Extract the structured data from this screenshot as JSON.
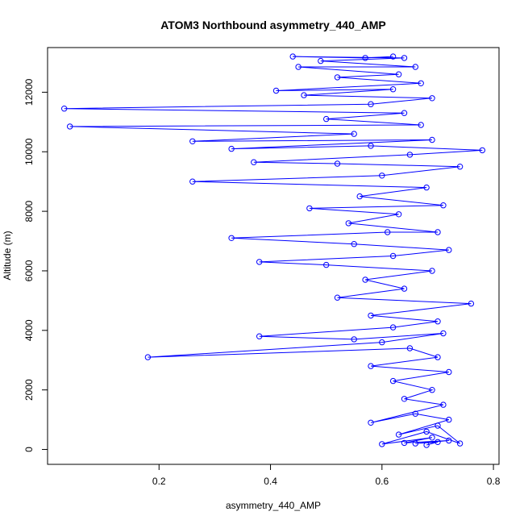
{
  "chart_data": {
    "type": "line",
    "title": "ATOM3 Northbound asymmetry_440_AMP",
    "xlabel": "asymmetry_440_AMP",
    "ylabel": "Altitude (m)",
    "xlim": [
      0.0,
      0.81
    ],
    "ylim": [
      -500,
      13500
    ],
    "x_ticks": [
      0.2,
      0.4,
      0.6,
      0.8
    ],
    "x_tick_labels": [
      "0.2",
      "0.4",
      "0.6",
      "0.8"
    ],
    "y_ticks": [
      0,
      2000,
      4000,
      6000,
      8000,
      10000,
      12000
    ],
    "y_tick_labels": [
      "0",
      "2000",
      "4000",
      "6000",
      "8000",
      "10000",
      "12000"
    ],
    "grid": false,
    "marker": "open-circle",
    "series": [
      {
        "color": "#0000ff",
        "points": [
          [
            0.68,
            150
          ],
          [
            0.7,
            250
          ],
          [
            0.66,
            200
          ],
          [
            0.72,
            300
          ],
          [
            0.64,
            220
          ],
          [
            0.69,
            400
          ],
          [
            0.6,
            180
          ],
          [
            0.68,
            600
          ],
          [
            0.74,
            200
          ],
          [
            0.7,
            800
          ],
          [
            0.63,
            500
          ],
          [
            0.72,
            1000
          ],
          [
            0.66,
            1200
          ],
          [
            0.58,
            900
          ],
          [
            0.71,
            1500
          ],
          [
            0.64,
            1700
          ],
          [
            0.69,
            2000
          ],
          [
            0.62,
            2300
          ],
          [
            0.72,
            2600
          ],
          [
            0.58,
            2800
          ],
          [
            0.7,
            3100
          ],
          [
            0.65,
            3400
          ],
          [
            0.18,
            3100
          ],
          [
            0.6,
            3600
          ],
          [
            0.71,
            3900
          ],
          [
            0.55,
            3700
          ],
          [
            0.38,
            3800
          ],
          [
            0.62,
            4100
          ],
          [
            0.7,
            4300
          ],
          [
            0.58,
            4500
          ],
          [
            0.76,
            4900
          ],
          [
            0.52,
            5100
          ],
          [
            0.64,
            5400
          ],
          [
            0.57,
            5700
          ],
          [
            0.69,
            6000
          ],
          [
            0.5,
            6200
          ],
          [
            0.38,
            6300
          ],
          [
            0.62,
            6500
          ],
          [
            0.72,
            6700
          ],
          [
            0.55,
            6900
          ],
          [
            0.33,
            7100
          ],
          [
            0.61,
            7300
          ],
          [
            0.7,
            7300
          ],
          [
            0.54,
            7600
          ],
          [
            0.63,
            7900
          ],
          [
            0.47,
            8100
          ],
          [
            0.71,
            8200
          ],
          [
            0.56,
            8500
          ],
          [
            0.68,
            8800
          ],
          [
            0.26,
            9000
          ],
          [
            0.6,
            9200
          ],
          [
            0.74,
            9500
          ],
          [
            0.52,
            9600
          ],
          [
            0.37,
            9650
          ],
          [
            0.65,
            9900
          ],
          [
            0.78,
            10050
          ],
          [
            0.58,
            10200
          ],
          [
            0.33,
            10100
          ],
          [
            0.69,
            10400
          ],
          [
            0.26,
            10350
          ],
          [
            0.55,
            10600
          ],
          [
            0.04,
            10850
          ],
          [
            0.67,
            10900
          ],
          [
            0.5,
            11100
          ],
          [
            0.64,
            11300
          ],
          [
            0.03,
            11450
          ],
          [
            0.58,
            11600
          ],
          [
            0.69,
            11800
          ],
          [
            0.46,
            11900
          ],
          [
            0.62,
            12100
          ],
          [
            0.41,
            12050
          ],
          [
            0.67,
            12300
          ],
          [
            0.52,
            12500
          ],
          [
            0.63,
            12600
          ],
          [
            0.45,
            12850
          ],
          [
            0.66,
            12850
          ],
          [
            0.49,
            13050
          ],
          [
            0.64,
            13150
          ],
          [
            0.44,
            13200
          ],
          [
            0.57,
            13150
          ],
          [
            0.62,
            13200
          ]
        ]
      }
    ]
  }
}
